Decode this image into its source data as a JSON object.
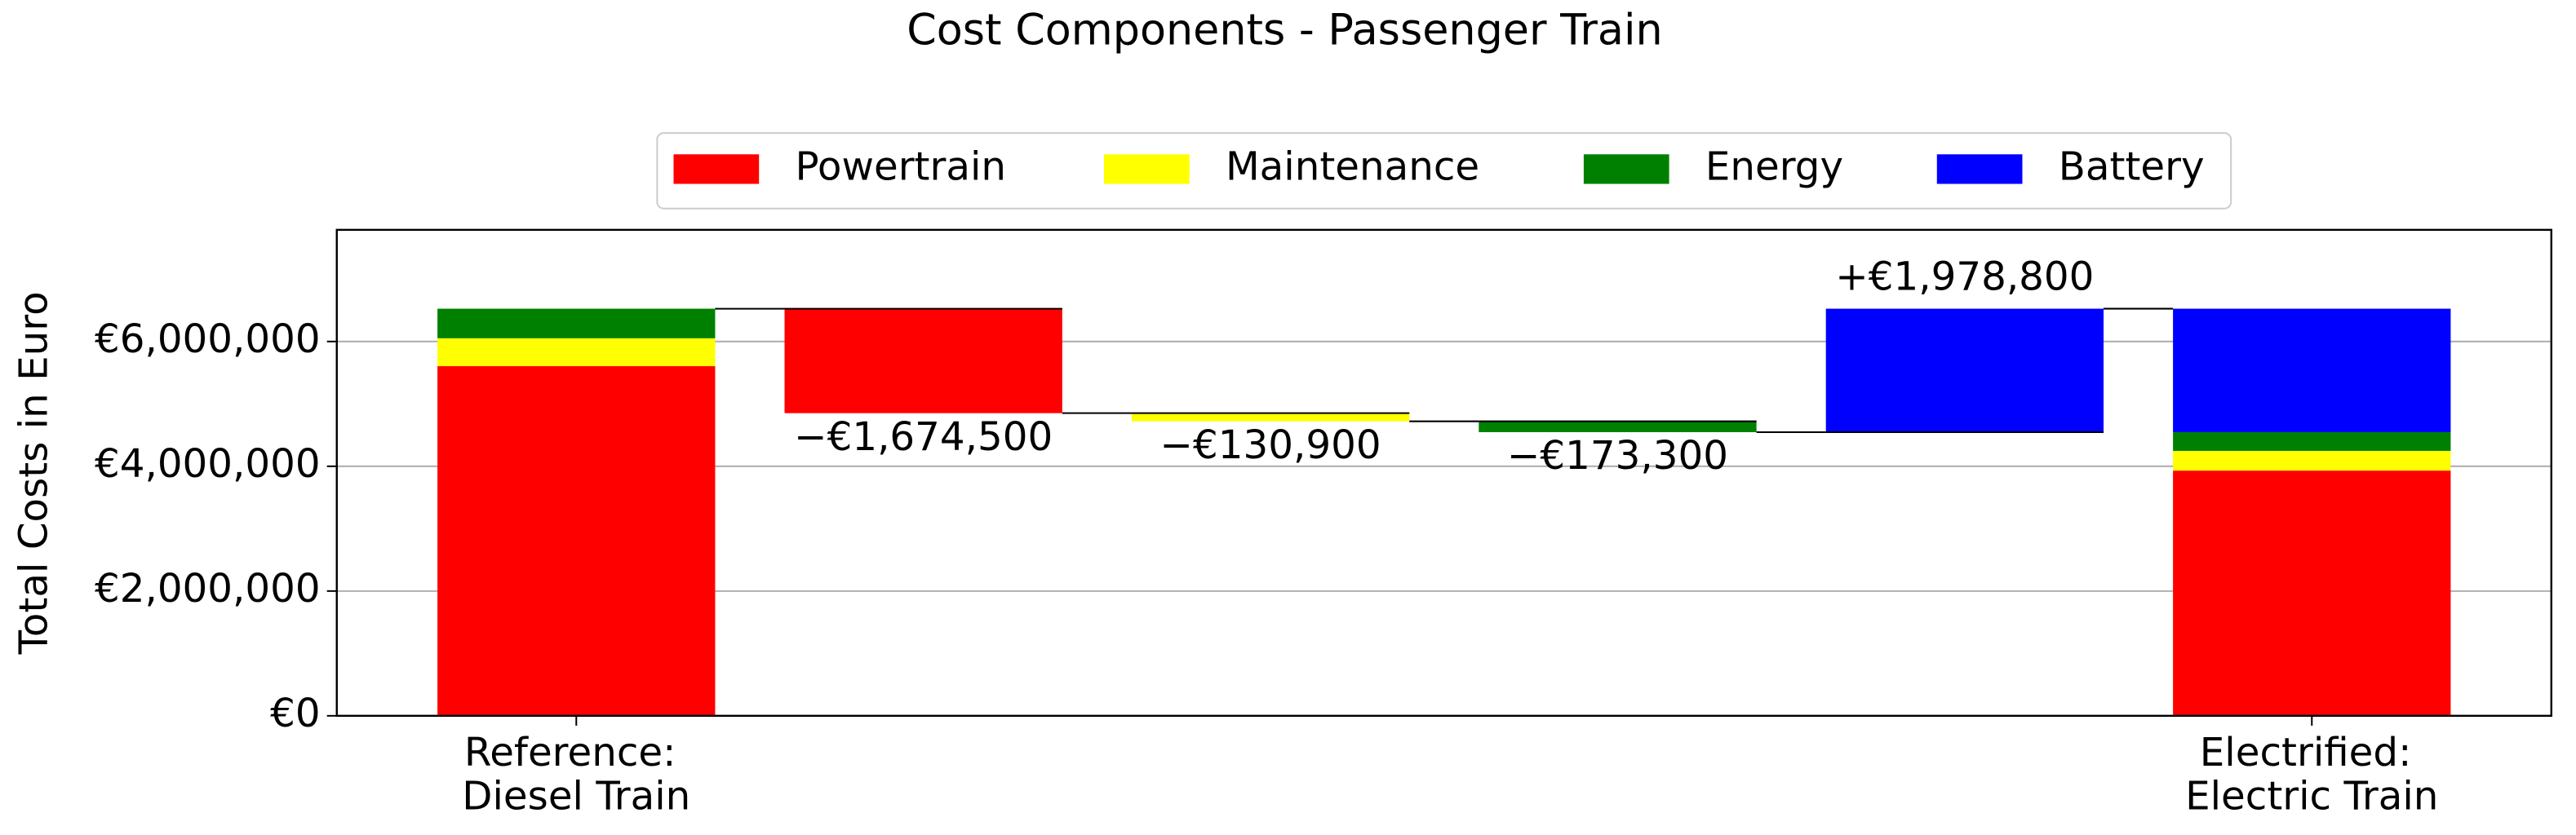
{
  "chart_data": {
    "type": "waterfall",
    "title": "Cost Components - Passenger Train",
    "ylabel": "Total Costs in Euro",
    "categories": [
      "Reference:\nDiesel Train",
      null,
      null,
      null,
      null,
      "Electrified:\nElectric Train"
    ],
    "series": [
      {
        "name": "Powertrain",
        "color": "#ff0000",
        "values": [
          5605000,
          -1674500,
          null,
          null,
          null,
          3930500
        ],
        "value_labels": [
          null,
          "−€1,674,500",
          null,
          null,
          null,
          null
        ]
      },
      {
        "name": "Maintenance",
        "color": "#ffff00",
        "values": [
          447000,
          null,
          -130900,
          null,
          null,
          316100
        ],
        "value_labels": [
          null,
          null,
          "−€130,900",
          null,
          null,
          null
        ]
      },
      {
        "name": "Energy",
        "color": "#008000",
        "values": [
          474000,
          null,
          null,
          -173300,
          null,
          300700
        ],
        "value_labels": [
          null,
          null,
          null,
          "−€173,300",
          null,
          null
        ]
      },
      {
        "name": "Battery",
        "color": "#0000ff",
        "values": [
          null,
          null,
          null,
          null,
          1978800,
          1978800
        ],
        "value_labels": [
          null,
          null,
          null,
          null,
          "+€1,978,800",
          null
        ]
      }
    ],
    "ylim": [
      0,
      7790000
    ],
    "yticks": [
      {
        "value": 0,
        "label": "€0"
      },
      {
        "value": 2000000,
        "label": "€2,000,000"
      },
      {
        "value": 4000000,
        "label": "€4,000,000"
      },
      {
        "value": 6000000,
        "label": "€6,000,000"
      }
    ],
    "grid": true,
    "legend": "top"
  }
}
